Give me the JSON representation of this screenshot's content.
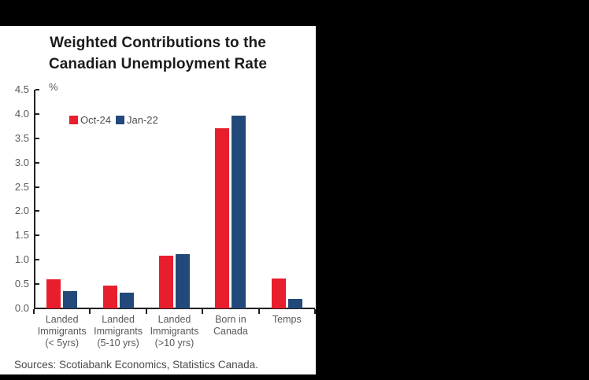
{
  "title": "Weighted Contributions to the Canadian Unemployment Rate",
  "chart_data": {
    "type": "bar",
    "title": "Weighted Contributions to the Canadian Unemployment Rate",
    "unit": "%",
    "categories": [
      "Landed Immigrants (< 5yrs)",
      "Landed Immigrants (5-10 yrs)",
      "Landed Immigrants (>10 yrs)",
      "Born in Canada",
      "Temps"
    ],
    "category_label_lines": [
      [
        "Landed",
        "Immigrants",
        "(< 5yrs)"
      ],
      [
        "Landed",
        "Immigrants",
        "(5-10 yrs)"
      ],
      [
        "Landed",
        "Immigrants",
        "(>10 yrs)"
      ],
      [
        "Born in",
        "Canada"
      ],
      [
        "Temps"
      ]
    ],
    "series": [
      {
        "name": "Oct-24",
        "color": "#e81e2d",
        "values": [
          0.6,
          0.47,
          1.08,
          3.7,
          0.62
        ]
      },
      {
        "name": "Jan-22",
        "color": "#23497a",
        "values": [
          0.35,
          0.32,
          1.12,
          3.97,
          0.19
        ]
      }
    ],
    "ylim": [
      0,
      4.5
    ],
    "ytick_step": 0.5,
    "ytick_labels": [
      "0.0",
      "0.5",
      "1.0",
      "1.5",
      "2.0",
      "2.5",
      "3.0",
      "3.5",
      "4.0",
      "4.5"
    ],
    "legend_position": "top-left-inside",
    "grid": false
  },
  "footer": {
    "sources": "Sources: Scotiabank Economics, Statistics Canada."
  },
  "colors": {
    "oct24_red": "#e81e2d",
    "jan22_navy": "#23497a",
    "axis": "#231f20",
    "label_gray": "#58595b",
    "title_text": "#1b1b1b",
    "panel_background": "#ffffff",
    "surround_background": "#000000"
  }
}
